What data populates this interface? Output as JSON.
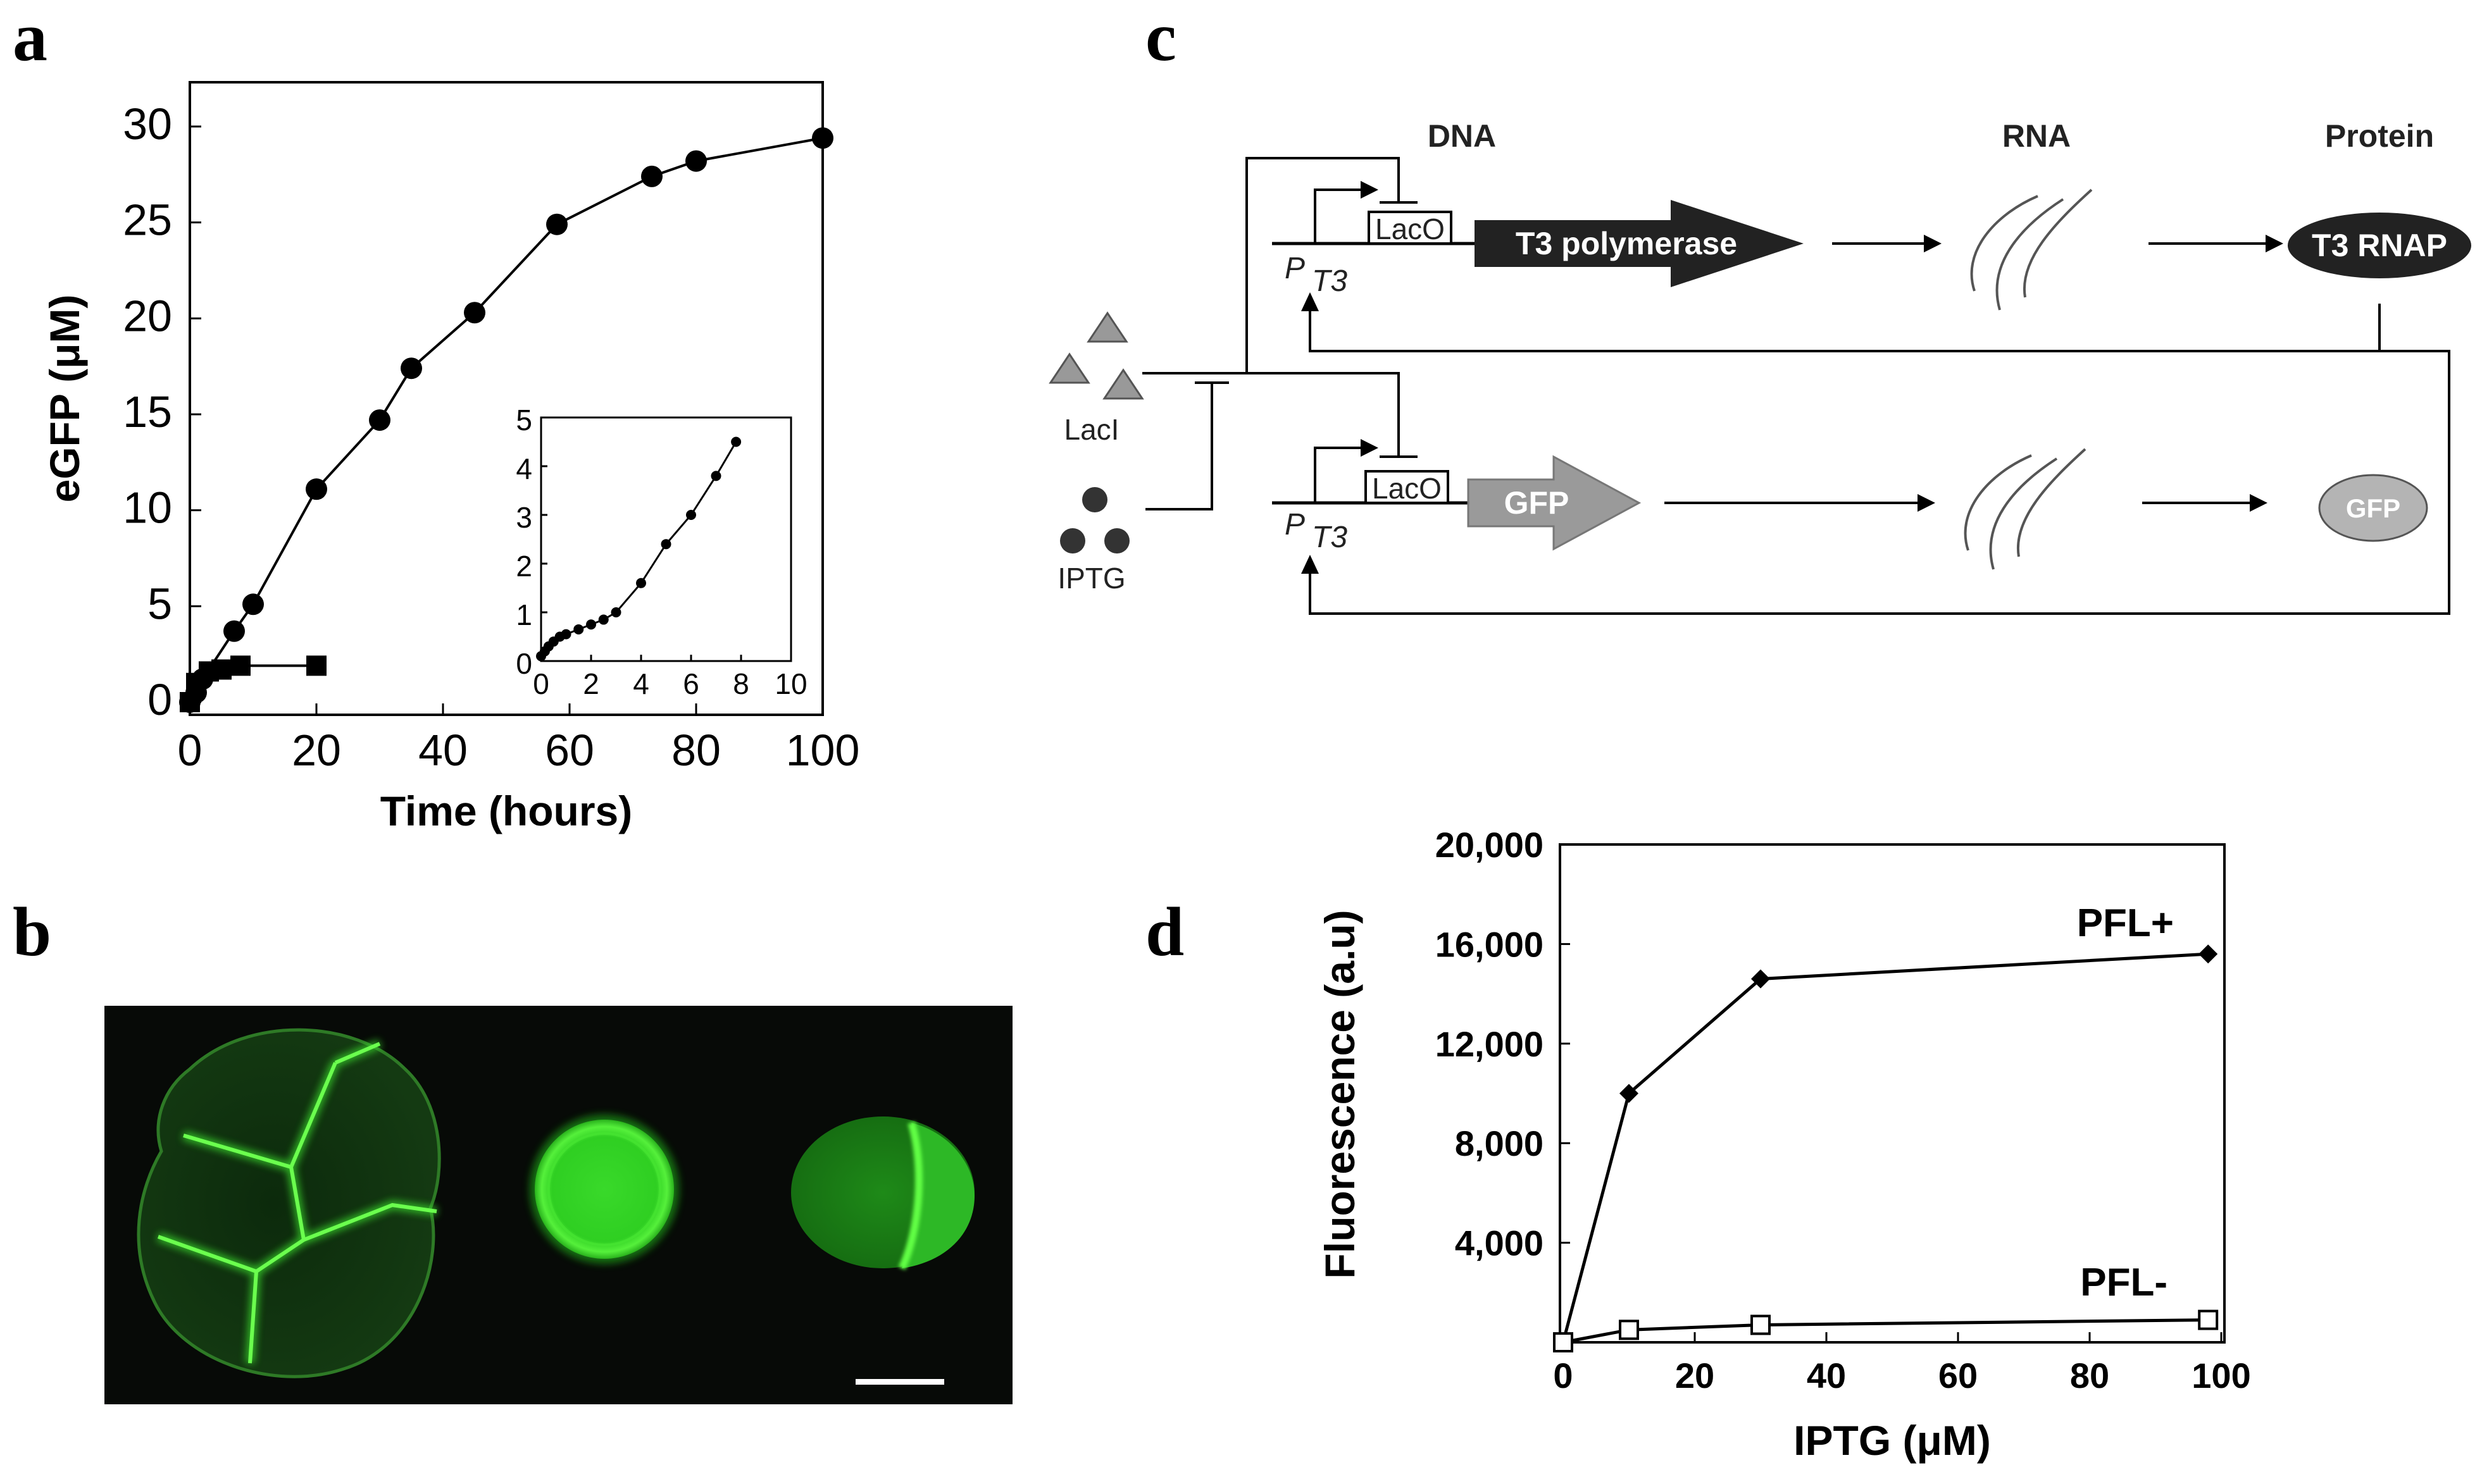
{
  "panels": {
    "a": "a",
    "b": "b",
    "c": "c",
    "d": "d"
  },
  "chart_data": [
    {
      "id": "a-main",
      "type": "line",
      "xlabel": "Time (hours)",
      "ylabel": "eGFP (μM)",
      "xlim": [
        0,
        100
      ],
      "ylim": [
        0,
        30
      ],
      "xticks": [
        0,
        20,
        40,
        60,
        80,
        100
      ],
      "yticks": [
        0,
        5,
        10,
        15,
        20,
        25,
        30
      ],
      "series": [
        {
          "marker": "circle",
          "x": [
            0,
            1,
            2,
            7,
            10,
            20,
            30,
            35,
            45,
            58,
            73,
            80,
            100
          ],
          "y": [
            0,
            0.5,
            1.2,
            3.7,
            5.1,
            11.1,
            14.7,
            17.4,
            20.3,
            24.9,
            27.4,
            28.2,
            29.4
          ]
        },
        {
          "marker": "square",
          "x": [
            0,
            1,
            3,
            5,
            8,
            20
          ],
          "y": [
            0,
            1,
            1.6,
            1.7,
            1.9,
            1.9
          ]
        }
      ]
    },
    {
      "id": "a-inset",
      "type": "line",
      "xlim": [
        0,
        10
      ],
      "ylim": [
        0,
        5
      ],
      "xticks": [
        0,
        2,
        4,
        6,
        8,
        10
      ],
      "yticks": [
        0,
        1,
        2,
        3,
        4,
        5
      ],
      "series": [
        {
          "marker": "circle",
          "x": [
            0,
            0.15,
            0.3,
            0.5,
            0.75,
            1.0,
            1.5,
            2.0,
            2.5,
            3.0,
            4.0,
            5.0,
            6.0,
            7.0,
            7.8
          ],
          "y": [
            0.1,
            0.2,
            0.3,
            0.4,
            0.5,
            0.55,
            0.65,
            0.75,
            0.85,
            1.0,
            1.6,
            2.4,
            3.0,
            3.8,
            4.5
          ]
        }
      ]
    },
    {
      "id": "d",
      "type": "line",
      "xlabel": "IPTG (μM)",
      "ylabel": "Fluorescence (a.u)",
      "xlim": [
        0,
        100
      ],
      "ylim": [
        0,
        20000
      ],
      "xticks": [
        0,
        20,
        40,
        60,
        80,
        100
      ],
      "yticks": [
        4000,
        8000,
        12000,
        16000,
        20000
      ],
      "yticklabels": [
        "4,000",
        "8,000",
        "12,000",
        "16,000",
        "20,000"
      ],
      "series": [
        {
          "name": "PFL+",
          "marker": "diamond",
          "x": [
            0,
            10,
            30,
            98
          ],
          "y": [
            0,
            10000,
            14600,
            15600
          ]
        },
        {
          "name": "PFL-",
          "marker": "open-square",
          "x": [
            0,
            10,
            30,
            98
          ],
          "y": [
            0,
            500,
            700,
            900
          ]
        }
      ]
    }
  ],
  "diagram": {
    "headers": {
      "dna": "DNA",
      "rna": "RNA",
      "protein": "Protein"
    },
    "promoter_p": "P",
    "promoter_sub": "T3",
    "operator": "LacO",
    "gene_top": "T3 polymerase",
    "gene_bottom": "GFP",
    "protein_top": "T3 RNAP",
    "protein_bottom": "GFP",
    "repressor": "LacI",
    "inducer": "IPTG",
    "colors": {
      "dark": "#222222",
      "grey": "#9a9a9a",
      "light": "#b4b4b4"
    }
  }
}
